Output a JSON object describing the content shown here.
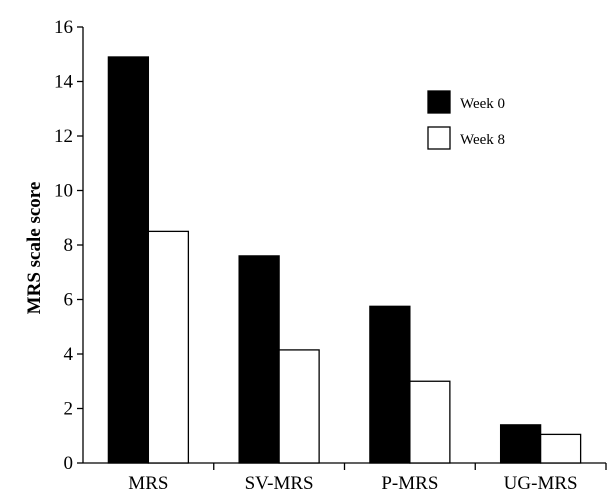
{
  "chart_data": {
    "type": "bar",
    "title": "",
    "xlabel": "",
    "ylabel": "MRS scale score",
    "ylim": [
      0,
      16
    ],
    "yticks": [
      "0",
      "2",
      "4",
      "6",
      "8",
      "10",
      "12",
      "14",
      "16"
    ],
    "grid": false,
    "legend_position": "top-right",
    "categories": [
      "MRS",
      "SV-MRS",
      "P-MRS",
      "UG-MRS"
    ],
    "series": [
      {
        "name": "Week 0",
        "values": [
          14.9,
          7.6,
          5.75,
          1.4
        ],
        "color": "#000000"
      },
      {
        "name": "Week 8",
        "values": [
          8.5,
          4.15,
          3.0,
          1.05
        ],
        "color": "#ffffff"
      }
    ]
  }
}
